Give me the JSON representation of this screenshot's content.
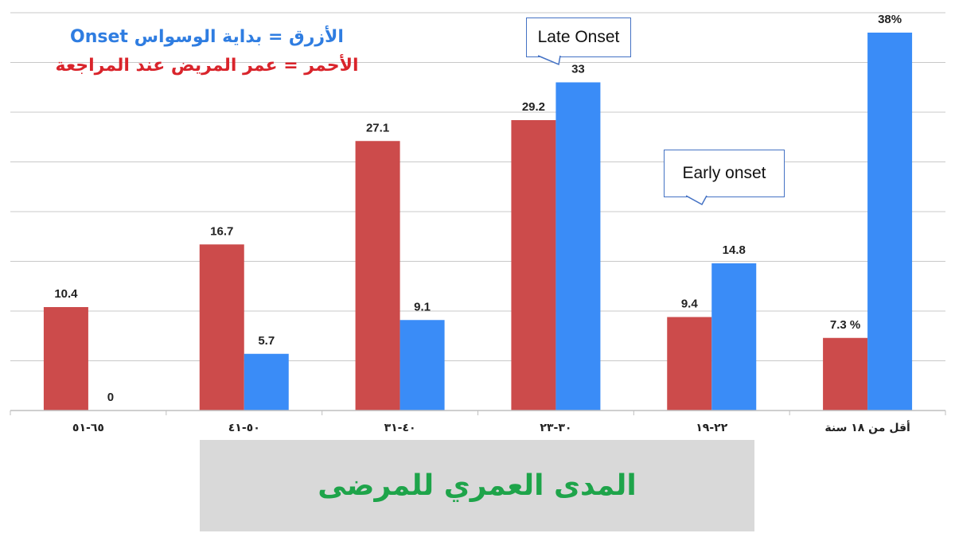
{
  "legend": {
    "blue_text": "الأزرق = بداية الوسواس Onset",
    "red_text": "الأحمر = عمر المريض عند المراجعة"
  },
  "callouts": {
    "late": "Late Onset",
    "early": "Early onset"
  },
  "axis_title": "المدى العمري للمرضى",
  "colors": {
    "red_series": "#cc4b4b",
    "blue_series": "#3a8cf7",
    "grid": "#c8c8c8",
    "axis_title_bg": "#d9d9d9",
    "axis_title_text": "#1ea44a"
  },
  "chart_data": {
    "type": "bar",
    "categories": [
      "٦٥-٥١",
      "٥٠-٤١",
      "٤٠-٣١",
      "٣٠-٢٣",
      "٢٢-١٩",
      "أقل من ١٨ سنة"
    ],
    "series": [
      {
        "key": "red",
        "values": [
          10.4,
          16.7,
          27.1,
          29.2,
          9.4,
          7.3
        ],
        "labels": [
          "10.4",
          "16.7",
          "27.1",
          "29.2",
          "9.4",
          "7.3 %"
        ]
      },
      {
        "key": "blue",
        "values": [
          0,
          5.7,
          9.1,
          33,
          14.8,
          38
        ],
        "labels": [
          "0",
          "5.7",
          "9.1",
          "33",
          "14.8",
          "38%"
        ]
      }
    ],
    "ylim": [
      0,
      40
    ],
    "grid": true,
    "ytick_step": 5
  }
}
